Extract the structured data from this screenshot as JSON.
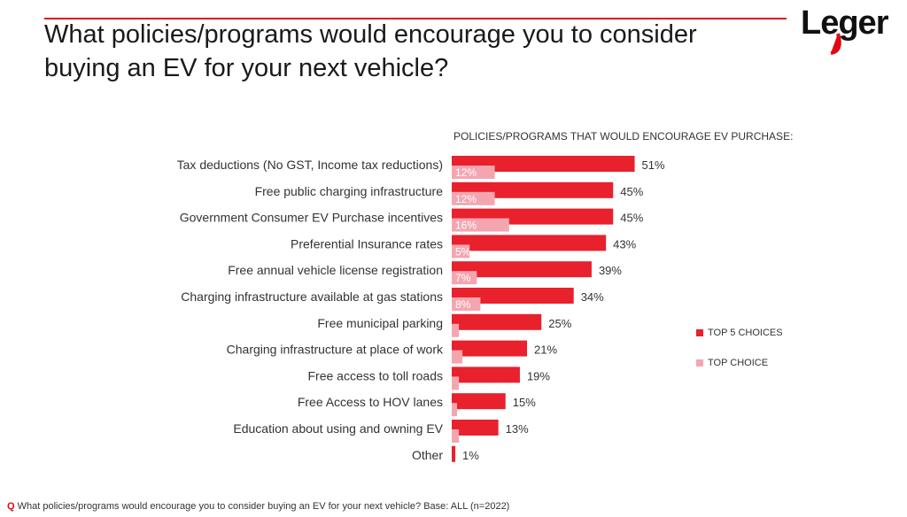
{
  "header": {
    "title": "What policies/programs would encourage you to consider buying an EV for your next vehicle?",
    "logo_text": "Leger"
  },
  "colors": {
    "accent": "#e30613",
    "top5": "#e8212d",
    "top_choice": "#f4a6b0"
  },
  "chart_data": {
    "type": "bar",
    "orientation": "horizontal",
    "title": "POLICIES/PROGRAMS THAT WOULD ENCOURAGE EV PURCHASE:",
    "categories": [
      "Tax deductions (No GST, Income tax reductions)",
      "Free public charging infrastructure",
      "Government Consumer EV Purchase incentives",
      "Preferential Insurance rates",
      "Free annual vehicle license registration",
      "Charging infrastructure available at gas stations",
      "Free municipal parking",
      "Charging infrastructure at place of work",
      "Free access to toll roads",
      "Free Access to HOV lanes",
      "Education about using and owning EV",
      "Other"
    ],
    "series": [
      {
        "name": "TOP 5 CHOICES",
        "values": [
          51,
          45,
          45,
          43,
          39,
          34,
          25,
          21,
          19,
          15,
          13,
          1
        ],
        "labels": [
          "51%",
          "45%",
          "45%",
          "43%",
          "39%",
          "34%",
          "25%",
          "21%",
          "19%",
          "15%",
          "13%",
          "1%"
        ]
      },
      {
        "name": "TOP CHOICE",
        "values": [
          12,
          12,
          16,
          5,
          7,
          8,
          2,
          3,
          2,
          1,
          2,
          0
        ],
        "labels": [
          "12%",
          "12%",
          "16%",
          "5%",
          "7%",
          "8%",
          "",
          "",
          "",
          "",
          "",
          ""
        ]
      }
    ],
    "xlim": [
      0,
      60
    ],
    "legend_position": "right"
  },
  "footnote": {
    "prefix": "Q",
    "text": "What policies/programs would encourage you to consider buying an EV for your next vehicle? Base: ALL (n=2022)"
  }
}
